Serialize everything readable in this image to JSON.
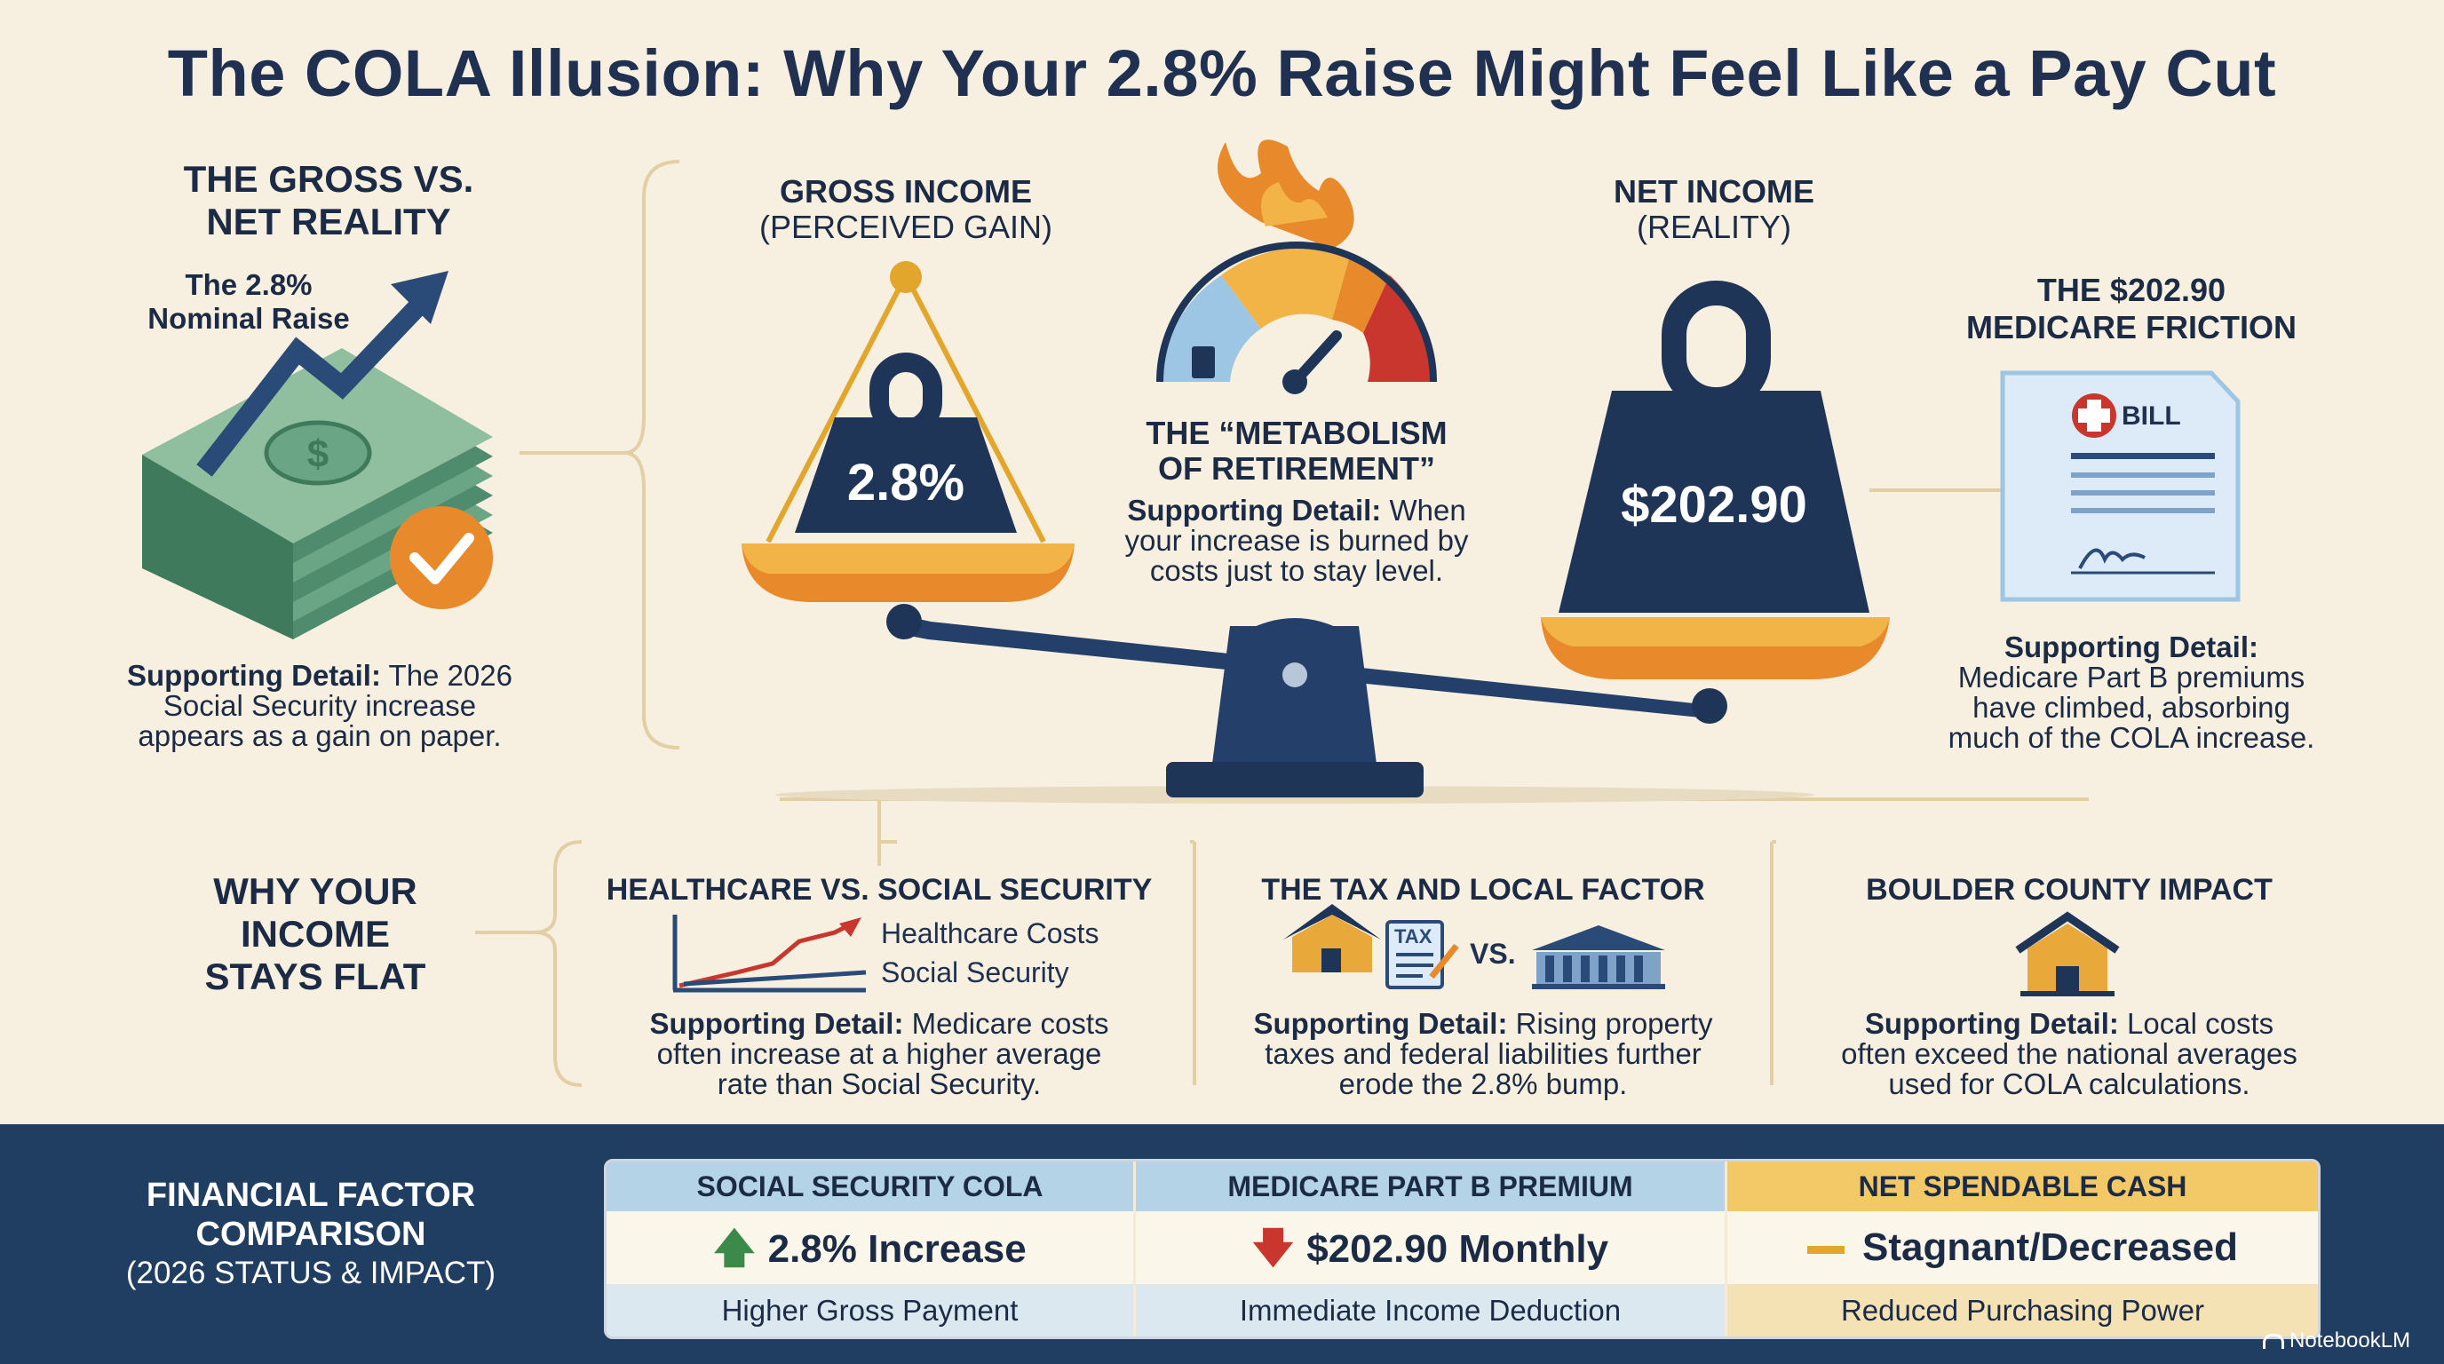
{
  "title": "The COLA Illusion: Why Your 2.8% Raise Might Feel Like a Pay Cut",
  "gross_vs_net": {
    "heading_line1": "THE GROSS VS.",
    "heading_line2": "NET REALITY",
    "raise_label_line1": "The 2.8%",
    "raise_label_line2": "Nominal Raise",
    "detail_label": "Supporting Detail:",
    "detail_line1": "The 2026",
    "detail_line2": "Social Security increase",
    "detail_line3": "appears as a gain on paper."
  },
  "scale": {
    "gross_line1": "GROSS INCOME",
    "gross_line2": "(PERCEIVED GAIN)",
    "gross_weight": "2.8%",
    "net_line1": "NET INCOME",
    "net_line2": "(REALITY)",
    "net_weight": "$202.90",
    "metabolism_line1": "THE “METABOLISM",
    "metabolism_line2": "OF RETIREMENT”",
    "metabolism_detail_label": "Supporting Detail:",
    "metabolism_detail_line1": "When",
    "metabolism_detail_line2": "your increase is burned by",
    "metabolism_detail_line3": "costs just to stay level."
  },
  "medicare_friction": {
    "heading_line1": "THE $202.90",
    "heading_line2": "MEDICARE FRICTION",
    "bill_label": "BILL",
    "detail_label": "Supporting Detail:",
    "detail_line1": "Medicare Part B premiums",
    "detail_line2": "have climbed, absorbing",
    "detail_line3": "much of the COLA increase."
  },
  "why_flat": {
    "heading_line1": "WHY YOUR",
    "heading_line2": "INCOME",
    "heading_line3": "STAYS FLAT"
  },
  "healthcare": {
    "heading": "HEALTHCARE VS. SOCIAL SECURITY",
    "legend_healthcare": "Healthcare Costs",
    "legend_social": "Social Security",
    "detail_label": "Supporting Detail:",
    "detail_line1": "Medicare costs",
    "detail_line2": "often increase at a higher average",
    "detail_line3": "rate than Social Security.",
    "colors": {
      "healthcare": "#c8362e",
      "social_security": "#2a4a78"
    }
  },
  "tax": {
    "heading": "THE TAX AND LOCAL FACTOR",
    "tax_doc_label": "TAX",
    "vs_label": "VS.",
    "detail_label": "Supporting Detail:",
    "detail_line1": "Rising property",
    "detail_line2": "taxes and federal liabilities further",
    "detail_line3": "erode the 2.8% bump."
  },
  "boulder": {
    "heading": "BOULDER COUNTY IMPACT",
    "detail_label": "Supporting Detail:",
    "detail_line1": "Local costs",
    "detail_line2": "often exceed the national averages",
    "detail_line3": "used for COLA calculations."
  },
  "comparison": {
    "heading_line1": "FINANCIAL FACTOR",
    "heading_line2": "COMPARISON",
    "heading_line3": "(2026 STATUS & IMPACT)",
    "columns": [
      {
        "header": "SOCIAL SECURITY COLA",
        "value": "2.8% Increase",
        "sub": "Higher Gross Payment",
        "icon": "up-arrow-icon",
        "color": "#3b8a4a"
      },
      {
        "header": "MEDICARE PART B PREMIUM",
        "value": "$202.90 Monthly",
        "sub": "Immediate Income Deduction",
        "icon": "down-arrow-icon",
        "color": "#c8362e"
      },
      {
        "header": "NET SPENDABLE CASH",
        "value": "Stagnant/Decreased",
        "sub": "Reduced Purchasing Power",
        "icon": "flat-dash-icon",
        "color": "#e3a62c"
      }
    ]
  },
  "watermark": "NotebookLM",
  "palette": {
    "navy": "#1f3050",
    "gold": "#e8a93a",
    "orange": "#e8892b",
    "green": "#5b9a76",
    "background": "#f7f0e1",
    "band": "#1f3e62"
  }
}
